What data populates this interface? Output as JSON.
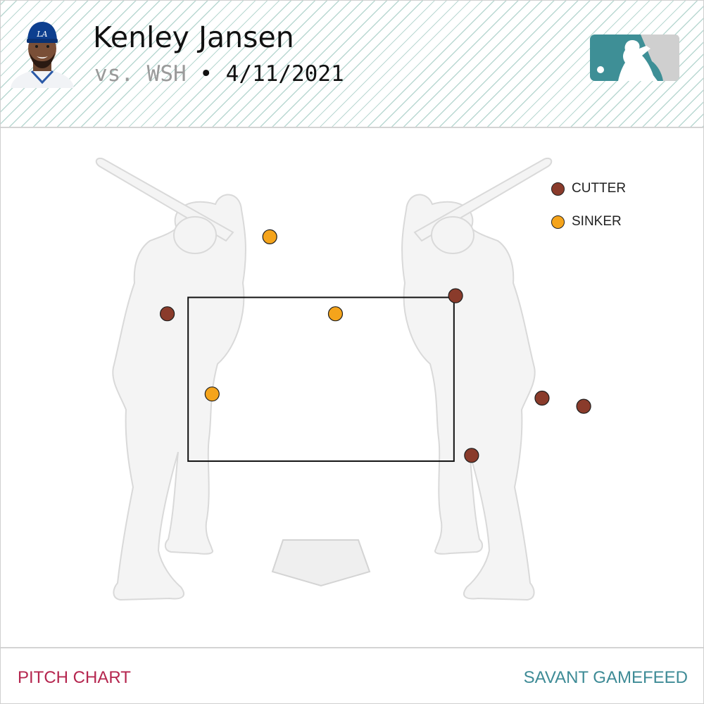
{
  "header": {
    "player_name": "Kenley Jansen",
    "opponent": "vs. WSH",
    "separator": "•",
    "game_date": "4/11/2021",
    "team_cap_letters": "LA"
  },
  "footer": {
    "left_label": "PITCH CHART",
    "right_label": "SAVANT GAMEFEED"
  },
  "colors": {
    "cutter": "#8a3b2b",
    "sinker": "#f5a41b",
    "accent_red": "#b5264f",
    "accent_teal": "#3e8b96",
    "stripe": "#b9d8d2"
  },
  "icons": [
    "player-headshot",
    "mlb-logo-icon",
    "batter-silhouette-icon",
    "home-plate-icon"
  ],
  "chart_data": {
    "type": "scatter",
    "title": "",
    "xlabel": "",
    "ylabel": "",
    "grid": false,
    "legend_position": "top-right",
    "xlim": [
      -2.0,
      2.0
    ],
    "ylim": [
      0.0,
      5.0
    ],
    "strike_zone": {
      "x": [
        -0.83,
        0.83
      ],
      "y": [
        1.5,
        3.5
      ]
    },
    "series": [
      {
        "name": "CUTTER",
        "color": "#8a3b2b",
        "points": [
          {
            "x": -0.96,
            "y": 3.3
          },
          {
            "x": 0.84,
            "y": 3.52
          },
          {
            "x": 1.38,
            "y": 2.27
          },
          {
            "x": 1.64,
            "y": 2.17
          },
          {
            "x": 0.94,
            "y": 1.57
          }
        ]
      },
      {
        "name": "SINKER",
        "color": "#f5a41b",
        "points": [
          {
            "x": -0.32,
            "y": 4.24
          },
          {
            "x": 0.09,
            "y": 3.3
          },
          {
            "x": -0.68,
            "y": 2.32
          }
        ]
      }
    ]
  }
}
